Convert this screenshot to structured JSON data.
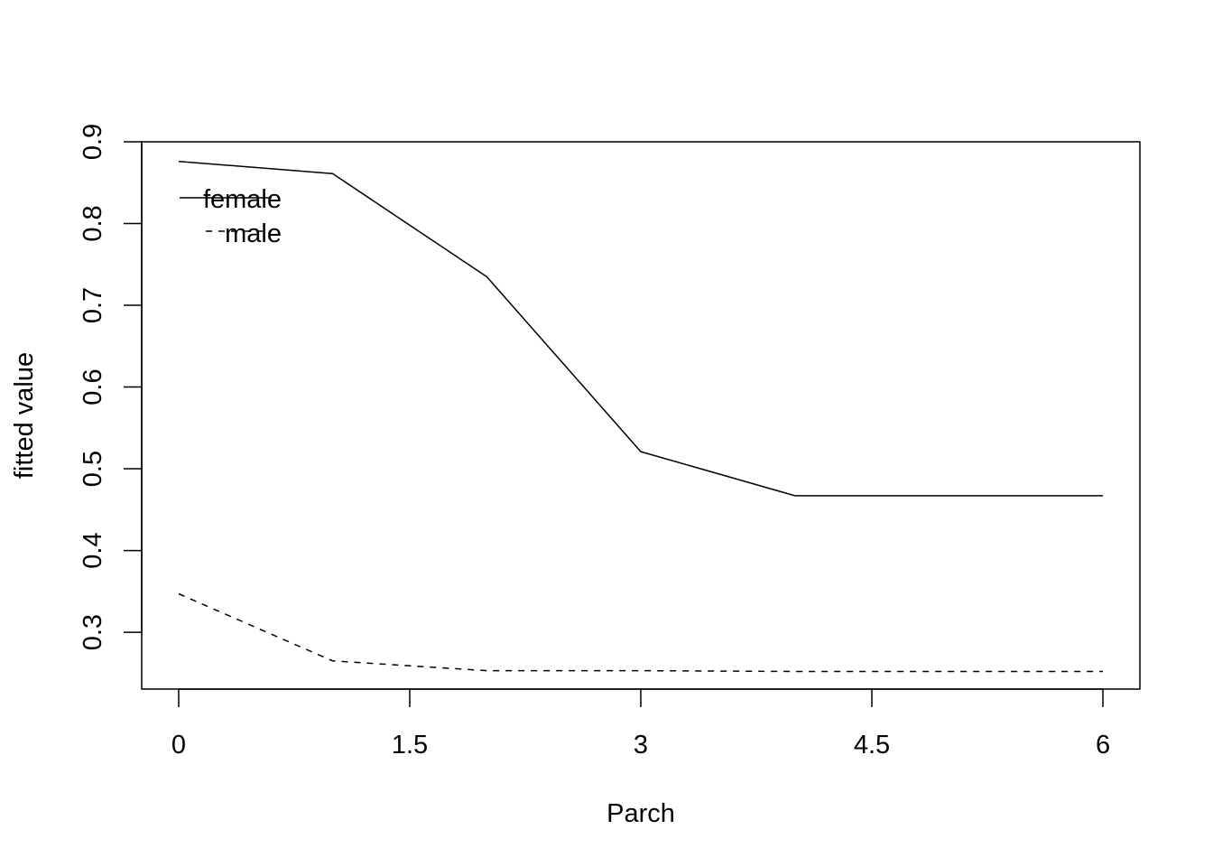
{
  "chart_data": {
    "type": "line",
    "title": "",
    "xlabel": "Parch",
    "ylabel": "fitted value",
    "x": [
      0,
      1,
      2,
      3,
      4,
      5,
      6
    ],
    "xticks": [
      "0",
      "1.5",
      "3",
      "4.5",
      "6"
    ],
    "xtick_values": [
      0,
      1.5,
      3,
      4.5,
      6
    ],
    "yticks": [
      "0.3",
      "0.4",
      "0.5",
      "0.6",
      "0.7",
      "0.8",
      "0.9"
    ],
    "ytick_values": [
      0.3,
      0.4,
      0.5,
      0.6,
      0.7,
      0.8,
      0.9
    ],
    "xlim": [
      -0.24,
      6.24
    ],
    "ylim": [
      0.2305,
      0.9
    ],
    "grid": false,
    "legend_position": "top-left",
    "series": [
      {
        "name": "female",
        "line_style": "solid",
        "values": [
          0.876,
          0.861,
          0.735,
          0.521,
          0.467,
          0.467,
          0.467
        ]
      },
      {
        "name": "male",
        "line_style": "dashed",
        "values": [
          0.347,
          0.265,
          0.253,
          0.253,
          0.252,
          0.252,
          0.252
        ]
      }
    ]
  }
}
